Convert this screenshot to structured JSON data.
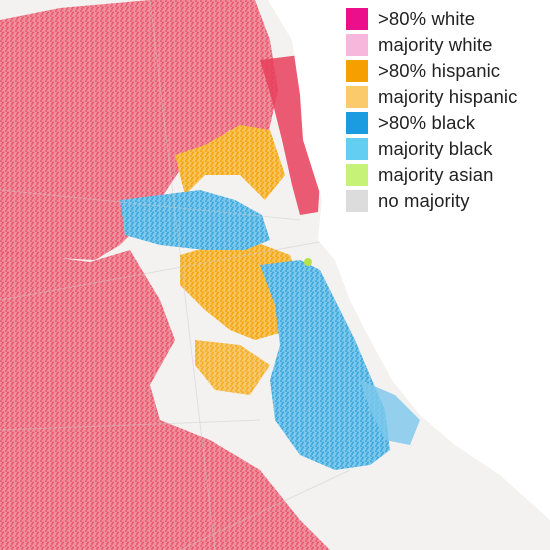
{
  "legend": {
    "items": [
      {
        "key": "white80",
        "label": ">80% white",
        "color": "#ec0f8c"
      },
      {
        "key": "white_maj",
        "label": "majority white",
        "color": "#f7b6dc"
      },
      {
        "key": "hispanic80",
        "label": ">80% hispanic",
        "color": "#f59f00"
      },
      {
        "key": "hispanic_maj",
        "label": "majority hispanic",
        "color": "#fbcb6b"
      },
      {
        "key": "black80",
        "label": ">80% black",
        "color": "#1b9be0"
      },
      {
        "key": "black_maj",
        "label": "majority black",
        "color": "#63cdf2"
      },
      {
        "key": "asian_maj",
        "label": "majority asian",
        "color": "#c6f277"
      },
      {
        "key": "none",
        "label": "no majority",
        "color": "#dcdcdc"
      }
    ]
  },
  "map": {
    "colors": {
      "land_base": "#f4f1f1",
      "water": "#ffffff",
      "white_dots": "#e7405c",
      "white_light": "#f08a98",
      "hispanic": "#f5a30a",
      "hispanic_light": "#f7c35a",
      "black": "#3aa6dc",
      "black_light": "#7cc8ec",
      "asian": "#b7e24a",
      "roads": "#c9c9c9"
    }
  }
}
